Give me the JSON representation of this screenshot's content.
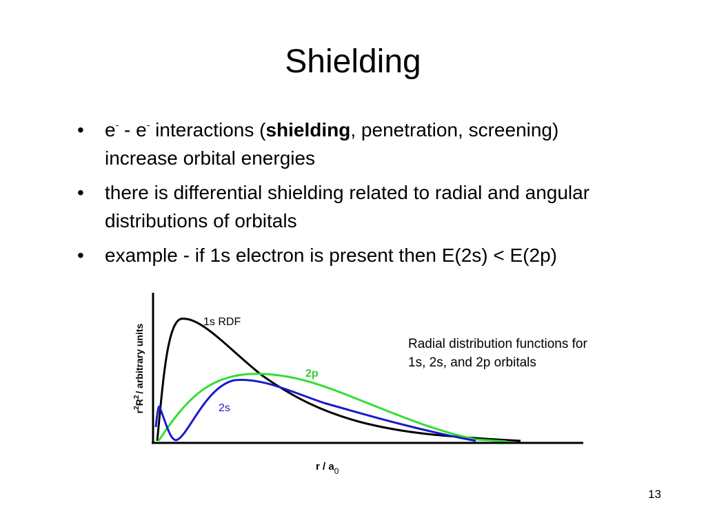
{
  "title": "Shielding",
  "bullets": [
    [
      "e",
      "-",
      " - e",
      "-",
      " interactions (",
      "shielding",
      ", penetration, screening) increase orbital energies"
    ],
    [
      "there is differential shielding related to radial and angular distributions of orbitals"
    ],
    [
      "example - if 1s electron is present then E(2s) < E(2p)"
    ]
  ],
  "figure": {
    "y_label": [
      "r",
      "2",
      "R",
      "2",
      "/ arbitrary units"
    ],
    "x_label": [
      "r / a",
      "0"
    ],
    "curve_labels": [
      "1s RDF",
      "2p",
      "2s"
    ],
    "caption": [
      "Radial distribution functions for",
      "1s, 2s, and 2p orbitals"
    ]
  },
  "page_number": "13"
}
